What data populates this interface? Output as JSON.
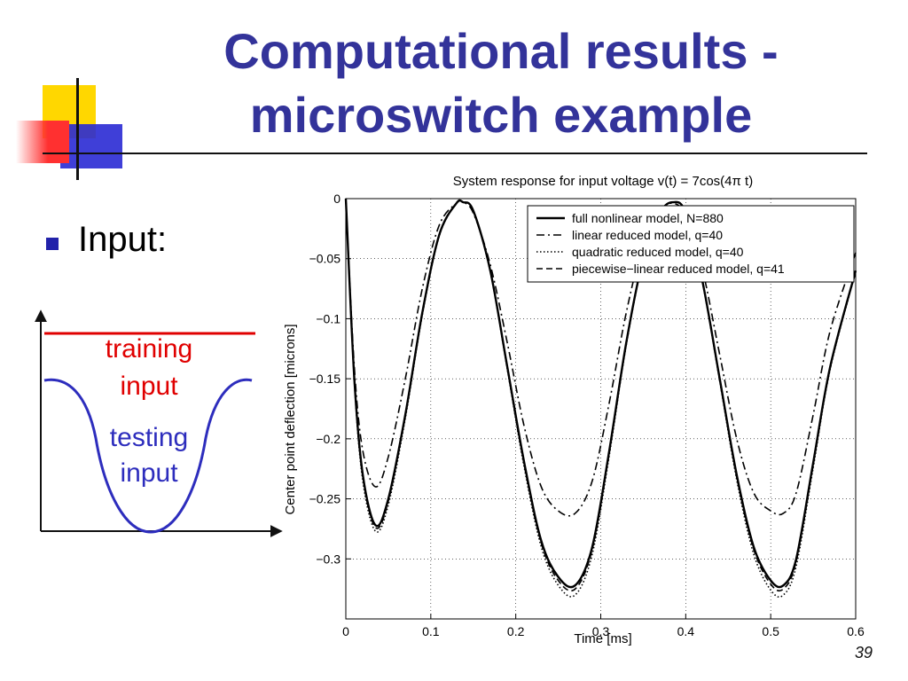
{
  "slide": {
    "title_line_1": "Computational results -",
    "title_line_2": "microswitch example",
    "bullet": "Input:",
    "inset": {
      "training_label_1": "training",
      "training_label_2": "input",
      "testing_label_1": "testing",
      "testing_label_2": "input",
      "training_color": "#e00000",
      "testing_color": "#2d2dbd"
    },
    "page_number": "39",
    "colors": {
      "title": "#33339a",
      "deco_yellow": "#ffd700",
      "deco_blue": "#2a2ad4",
      "deco_red": "#ff3030"
    }
  },
  "chart_data": {
    "type": "line",
    "title": "System response for input voltage v(t) = 7cos(4π t)",
    "xlabel": "Time [ms]",
    "ylabel": "Center point deflection [microns]",
    "xlim": [
      0,
      0.6
    ],
    "ylim": [
      -0.35,
      0
    ],
    "xticks": [
      0,
      0.1,
      0.2,
      0.3,
      0.4,
      0.5,
      0.6
    ],
    "xtick_labels": [
      "0",
      "0.1",
      "0.2",
      "0.3",
      "0.4",
      "0.5",
      "0.6"
    ],
    "yticks": [
      0,
      -0.05,
      -0.1,
      -0.15,
      -0.2,
      -0.25,
      -0.3
    ],
    "ytick_labels": [
      "0",
      "−0.05",
      "−0.1",
      "−0.15",
      "−0.2",
      "−0.25",
      "−0.3"
    ],
    "grid": true,
    "legend_position": "top-right",
    "series": [
      {
        "name": "full nonlinear model, N=880",
        "style": "solid",
        "x": [
          0,
          0.01,
          0.02,
          0.035,
          0.05,
          0.07,
          0.09,
          0.11,
          0.13,
          0.138,
          0.15,
          0.17,
          0.19,
          0.21,
          0.23,
          0.25,
          0.27,
          0.29,
          0.31,
          0.33,
          0.35,
          0.37,
          0.385,
          0.4,
          0.42,
          0.44,
          0.46,
          0.48,
          0.5,
          0.515,
          0.53,
          0.55,
          0.57,
          0.6
        ],
        "y": [
          0,
          -0.15,
          -0.23,
          -0.272,
          -0.25,
          -0.18,
          -0.095,
          -0.03,
          -0.004,
          -0.003,
          -0.01,
          -0.06,
          -0.14,
          -0.22,
          -0.285,
          -0.315,
          -0.322,
          -0.29,
          -0.21,
          -0.12,
          -0.05,
          -0.012,
          -0.003,
          -0.012,
          -0.07,
          -0.15,
          -0.23,
          -0.29,
          -0.318,
          -0.322,
          -0.3,
          -0.22,
          -0.14,
          -0.06
        ]
      },
      {
        "name": "linear reduced model, q=40",
        "style": "dashdot",
        "x": [
          0,
          0.01,
          0.02,
          0.035,
          0.05,
          0.07,
          0.09,
          0.11,
          0.13,
          0.138,
          0.15,
          0.17,
          0.19,
          0.21,
          0.23,
          0.25,
          0.27,
          0.29,
          0.31,
          0.33,
          0.35,
          0.37,
          0.385,
          0.4,
          0.42,
          0.44,
          0.46,
          0.48,
          0.5,
          0.515,
          0.53,
          0.55,
          0.57,
          0.6
        ],
        "y": [
          0,
          -0.14,
          -0.21,
          -0.24,
          -0.215,
          -0.15,
          -0.075,
          -0.022,
          -0.004,
          -0.003,
          -0.012,
          -0.055,
          -0.12,
          -0.19,
          -0.24,
          -0.26,
          -0.262,
          -0.235,
          -0.17,
          -0.095,
          -0.038,
          -0.01,
          -0.004,
          -0.014,
          -0.06,
          -0.13,
          -0.2,
          -0.245,
          -0.26,
          -0.262,
          -0.245,
          -0.18,
          -0.11,
          -0.045
        ]
      },
      {
        "name": "quadratic reduced model, q=40",
        "style": "dotted",
        "x": [
          0,
          0.01,
          0.02,
          0.035,
          0.05,
          0.07,
          0.09,
          0.11,
          0.13,
          0.138,
          0.15,
          0.17,
          0.19,
          0.21,
          0.23,
          0.25,
          0.27,
          0.29,
          0.31,
          0.33,
          0.35,
          0.37,
          0.385,
          0.4,
          0.42,
          0.44,
          0.46,
          0.48,
          0.5,
          0.515,
          0.53,
          0.55,
          0.57,
          0.6
        ],
        "y": [
          0,
          -0.152,
          -0.235,
          -0.277,
          -0.255,
          -0.183,
          -0.097,
          -0.031,
          -0.004,
          -0.003,
          -0.01,
          -0.061,
          -0.142,
          -0.224,
          -0.29,
          -0.322,
          -0.33,
          -0.296,
          -0.214,
          -0.122,
          -0.051,
          -0.012,
          -0.003,
          -0.012,
          -0.071,
          -0.152,
          -0.234,
          -0.296,
          -0.326,
          -0.33,
          -0.306,
          -0.224,
          -0.142,
          -0.061
        ]
      },
      {
        "name": "piecewise−linear reduced model, q=41",
        "style": "dashed",
        "x": [
          0,
          0.01,
          0.02,
          0.035,
          0.05,
          0.07,
          0.09,
          0.11,
          0.13,
          0.138,
          0.15,
          0.17,
          0.19,
          0.21,
          0.23,
          0.25,
          0.27,
          0.29,
          0.31,
          0.33,
          0.35,
          0.37,
          0.385,
          0.4,
          0.42,
          0.44,
          0.46,
          0.48,
          0.5,
          0.515,
          0.53,
          0.55,
          0.57,
          0.6
        ],
        "y": [
          0,
          -0.15,
          -0.232,
          -0.274,
          -0.252,
          -0.181,
          -0.096,
          -0.03,
          -0.004,
          -0.003,
          -0.01,
          -0.06,
          -0.141,
          -0.222,
          -0.287,
          -0.318,
          -0.325,
          -0.292,
          -0.212,
          -0.121,
          -0.05,
          -0.012,
          -0.003,
          -0.012,
          -0.07,
          -0.151,
          -0.232,
          -0.292,
          -0.321,
          -0.325,
          -0.302,
          -0.222,
          -0.141,
          -0.06
        ]
      }
    ]
  }
}
